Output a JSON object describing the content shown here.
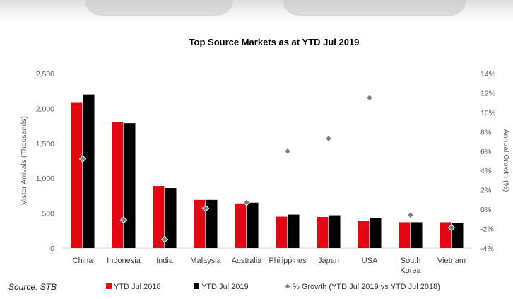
{
  "source_note": "Source: STB",
  "chart_data": {
    "type": "bar",
    "title": "Top Source Markets as at YTD Jul 2019",
    "ylabel": "Vistor Arrivals (Thousands)",
    "y2label": "Annual Growth (%)",
    "ylim": [
      0,
      2500
    ],
    "y_ticks": [
      "0",
      "500",
      "1,000",
      "1,500",
      "2,000",
      "2,500"
    ],
    "y2lim": [
      -4,
      14
    ],
    "y2_ticks": [
      "-4%",
      "-2%",
      "0%",
      "2%",
      "4%",
      "6%",
      "8%",
      "10%",
      "12%",
      "14%"
    ],
    "categories": [
      [
        "China"
      ],
      [
        "Indonesia"
      ],
      [
        "India"
      ],
      [
        "Malaysia"
      ],
      [
        "Australia"
      ],
      [
        "Philippines"
      ],
      [
        "Japan"
      ],
      [
        "USA"
      ],
      [
        "South",
        "Korea"
      ],
      [
        "Vietnam"
      ]
    ],
    "series": [
      {
        "name": "YTD Jul 2018",
        "color": "#e30613",
        "axis": "left",
        "values": [
          2080,
          1810,
          890,
          690,
          640,
          450,
          445,
          385,
          370,
          370
        ]
      },
      {
        "name": "YTD Jul 2019",
        "color": "#000000",
        "axis": "left",
        "values": [
          2200,
          1790,
          860,
          690,
          650,
          480,
          470,
          430,
          370,
          360
        ]
      },
      {
        "name": "% Growth (YTD Jul 2019 vs YTD Jul 2018)",
        "color": "#7f7f7f",
        "axis": "right",
        "type": "scatter",
        "values": [
          5.2,
          -1.1,
          -3.1,
          0.1,
          0.7,
          6.0,
          7.3,
          11.5,
          -0.6,
          -1.9
        ]
      }
    ],
    "legend_position": "bottom",
    "grid": false
  }
}
